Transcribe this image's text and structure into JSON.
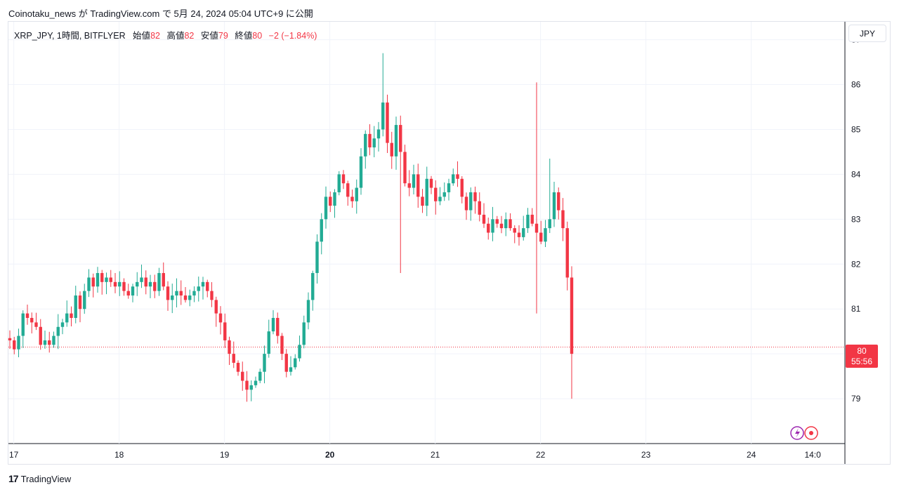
{
  "header": {
    "publish_line": "Coinotaku_news が TradingView.com で 5月 24, 2024 05:04 UTC+9 に公開"
  },
  "legend": {
    "symbol": "XRP_JPY, 1時間, BITFLYER",
    "open_label": "始値",
    "open_value": "82",
    "high_label": "高値",
    "high_value": "82",
    "low_label": "安値",
    "low_value": "79",
    "close_label": "終値",
    "close_value": "80",
    "change": "−2 (−1.84%)"
  },
  "currency_button": "JPY",
  "price_tag": {
    "price": "80",
    "countdown": "55:56"
  },
  "footer": {
    "brand": "TradingView",
    "logo_glyph": "17"
  },
  "colors": {
    "up": "#22ab94",
    "down": "#f23645",
    "grid": "#f0f3fa",
    "axis_text": "#131722"
  },
  "chart_data": {
    "type": "candlestick",
    "ylim": [
      78.0,
      87.4
    ],
    "y_ticks": [
      79,
      80,
      81,
      82,
      83,
      84,
      85,
      86,
      87
    ],
    "x_ticks": [
      {
        "label": "17",
        "x": 0.9,
        "bold": false
      },
      {
        "label": "18",
        "x": 24.9,
        "bold": false
      },
      {
        "label": "19",
        "x": 48.9,
        "bold": false
      },
      {
        "label": "20",
        "x": 72.9,
        "bold": true
      },
      {
        "label": "21",
        "x": 96.9,
        "bold": false
      },
      {
        "label": "22",
        "x": 120.9,
        "bold": false
      },
      {
        "label": "23",
        "x": 144.9,
        "bold": false
      },
      {
        "label": "24",
        "x": 168.9,
        "bold": false
      },
      {
        "label": "14:0",
        "x": 182.9,
        "bold": false
      }
    ],
    "last_price": 80.15,
    "closes": [
      80.3,
      80.1,
      80.4,
      80.9,
      80.8,
      80.7,
      80.6,
      80.2,
      80.3,
      80.2,
      80.4,
      80.6,
      80.7,
      80.9,
      80.8,
      81.3,
      81.0,
      81.4,
      81.7,
      81.5,
      81.8,
      81.6,
      81.7,
      81.6,
      81.5,
      81.6,
      81.4,
      81.3,
      81.5,
      81.6,
      81.7,
      81.5,
      81.6,
      81.4,
      81.8,
      81.5,
      81.2,
      81.3,
      81.4,
      81.3,
      81.2,
      81.3,
      81.4,
      81.5,
      81.6,
      81.4,
      81.2,
      80.9,
      80.7,
      80.3,
      80.0,
      79.8,
      79.6,
      79.4,
      79.2,
      79.3,
      79.4,
      79.6,
      80.0,
      80.5,
      80.8,
      80.4,
      80.0,
      79.6,
      79.7,
      79.9,
      80.2,
      80.7,
      81.2,
      81.8,
      82.5,
      83.0,
      83.5,
      83.3,
      83.6,
      84.0,
      83.8,
      83.5,
      83.4,
      83.7,
      84.4,
      84.9,
      84.6,
      84.8,
      85.0,
      85.6,
      84.7,
      84.4,
      85.1,
      84.5,
      83.8,
      83.7,
      84.0,
      83.5,
      83.3,
      83.9,
      83.7,
      83.4,
      83.5,
      83.6,
      83.8,
      84.0,
      83.9,
      83.5,
      83.2,
      83.6,
      83.4,
      83.1,
      82.9,
      82.7,
      83.0,
      82.9,
      82.8,
      83.0,
      82.8,
      82.7,
      82.6,
      82.8,
      83.1,
      82.9,
      82.7,
      82.5,
      82.8,
      83.0,
      83.6,
      83.2,
      82.8,
      81.7,
      80.0
    ]
  }
}
